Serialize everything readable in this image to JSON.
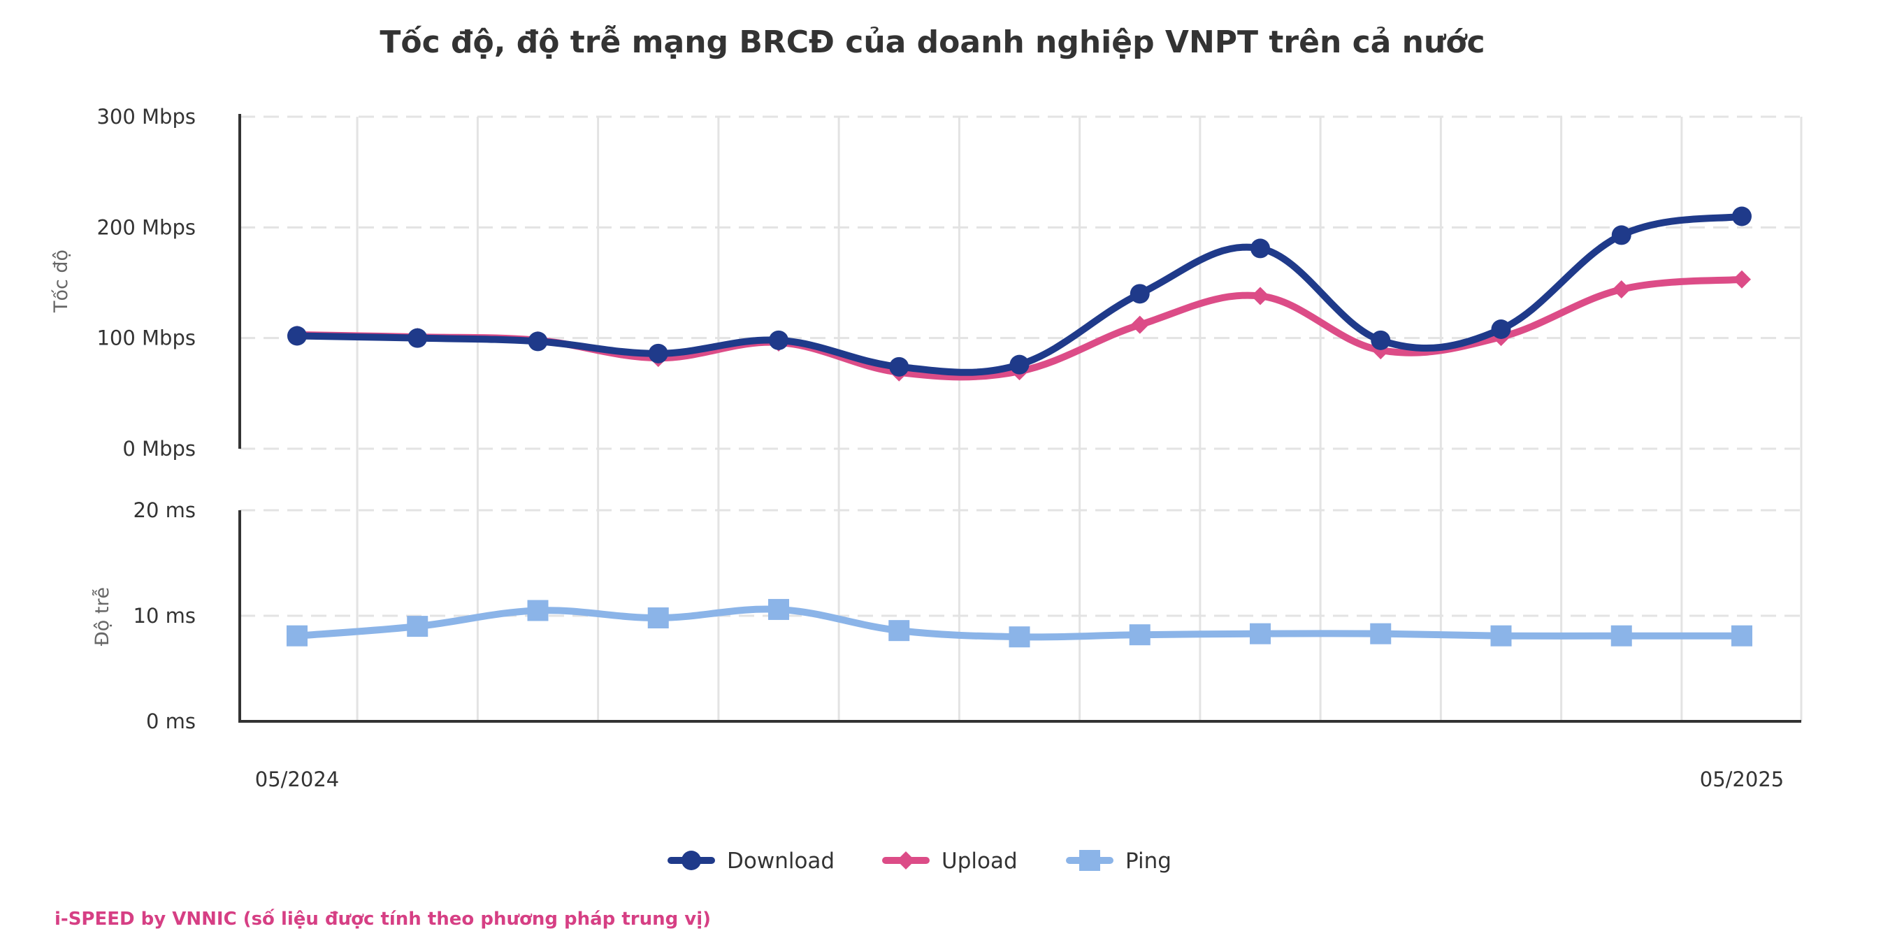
{
  "colors": {
    "download": "#1f3a8a",
    "upload": "#dc4c87",
    "ping": "#8bb4e8",
    "grid": "#e3e3e3",
    "axis": "#333333",
    "credit": "#d63f84"
  },
  "chart_data": {
    "type": "line",
    "title": "Tốc độ, độ trễ mạng BRCĐ của doanh nghiệp VNPT trên cả nước",
    "x_labels": [
      "05/2024",
      "",
      "",
      "",
      "",
      "",
      "",
      "",
      "",
      "",
      "",
      "",
      "05/2025"
    ],
    "speed_axis": {
      "title": "Tốc độ",
      "ylim": [
        0,
        300
      ],
      "ticks": [
        0,
        100,
        200,
        300
      ],
      "tick_labels": [
        "0 Mbps",
        "100 Mbps",
        "200 Mbps",
        "300 Mbps"
      ]
    },
    "latency_axis": {
      "title": "Độ trễ",
      "ylim": [
        0,
        20
      ],
      "ticks": [
        0,
        10,
        20
      ],
      "tick_labels": [
        "0 ms",
        "10 ms",
        "20 ms"
      ]
    },
    "series": [
      {
        "name": "Download",
        "axis": "speed",
        "marker": "circle",
        "values": [
          102,
          100,
          97,
          86,
          98,
          74,
          76,
          140,
          181,
          98,
          108,
          193,
          210
        ]
      },
      {
        "name": "Upload",
        "axis": "speed",
        "marker": "diamond",
        "values": [
          103,
          101,
          98,
          82,
          96,
          69,
          70,
          112,
          138,
          89,
          101,
          144,
          153
        ]
      },
      {
        "name": "Ping",
        "axis": "latency",
        "marker": "square",
        "values": [
          8.1,
          9.0,
          10.5,
          9.8,
          10.6,
          8.6,
          8.0,
          8.2,
          8.3,
          8.3,
          8.1,
          8.1,
          8.1
        ]
      }
    ],
    "legend": [
      "Download",
      "Upload",
      "Ping"
    ],
    "legend_position": "bottom-center"
  },
  "footer": {
    "credit": "i-SPEED by VNNIC (số liệu được tính theo phương pháp trung vị)"
  }
}
